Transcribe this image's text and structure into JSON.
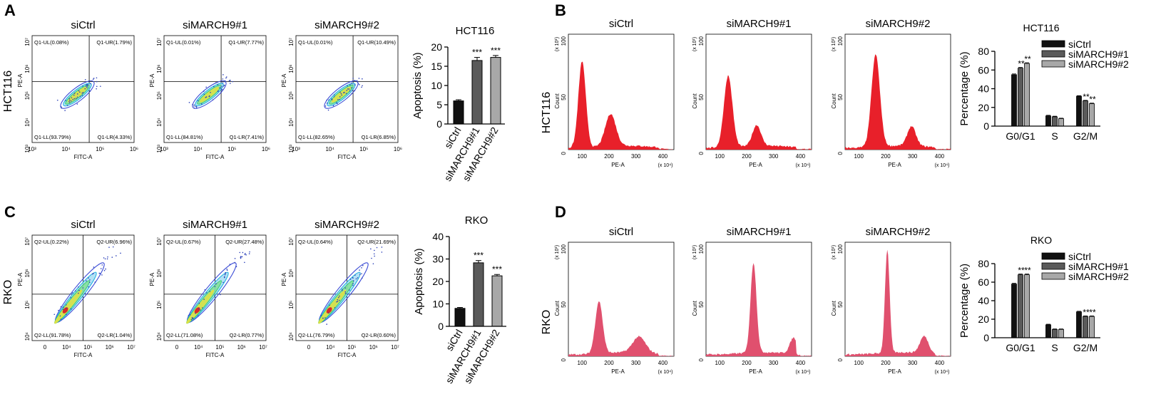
{
  "panel_letters": [
    "A",
    "B",
    "C",
    "D"
  ],
  "row_labels": {
    "hct": "HCT116",
    "rko": "RKO"
  },
  "group_names": [
    "siCtrl",
    "siMARCH9#1",
    "siMARCH9#2"
  ],
  "flow_axes": {
    "x": "FITC-A",
    "y": "PE-A",
    "x_ticks_hct": [
      "10³",
      "10⁴",
      "10⁵",
      "10⁶"
    ],
    "x_ticks_rko": [
      "0",
      "10⁴",
      "10⁵",
      "10⁶",
      "10⁷"
    ],
    "y_ticks_hct": [
      "10³",
      "10⁴",
      "10⁵",
      "10⁶",
      "10⁷"
    ],
    "y_ticks_rko": [
      "10⁴",
      "10⁵",
      "10⁶",
      "10⁷"
    ]
  },
  "flow_panels": [
    {
      "row": "HCT116",
      "group": "siCtrl",
      "q": [
        "Q1-UL(0.08%)",
        "Q1-UR(1.79%)",
        "Q1-LL(93.79%)",
        "Q1-LR(4.33%)"
      ]
    },
    {
      "row": "HCT116",
      "group": "siMARCH9#1",
      "q": [
        "Q1-UL(0.01%)",
        "Q1-UR(7.77%)",
        "Q1-LL(84.81%)",
        "Q1-LR(7.41%)"
      ]
    },
    {
      "row": "HCT116",
      "group": "siMARCH9#2",
      "q": [
        "Q1-UL(0.01%)",
        "Q1-UR(10.49%)",
        "Q1-LL(82.65%)",
        "Q1-LR(6.85%)"
      ]
    },
    {
      "row": "RKO",
      "group": "siCtrl",
      "q": [
        "Q2-UL(0.22%)",
        "Q2-UR(6.96%)",
        "Q2-LL(91.78%)",
        "Q2-LR(1.04%)"
      ]
    },
    {
      "row": "RKO",
      "group": "siMARCH9#1",
      "q": [
        "Q2-UL(0.67%)",
        "Q2-UR(27.48%)",
        "Q2-LL(71.08%)",
        "Q2-LR(0.77%)"
      ]
    },
    {
      "row": "RKO",
      "group": "siMARCH9#2",
      "q": [
        "Q2-UL(0.64%)",
        "Q2-UR(21.69%)",
        "Q2-LL(76.79%)",
        "Q2-LR(0.60%)"
      ]
    }
  ],
  "cc_axes": {
    "x": "PE-A",
    "y": "Count",
    "x_ticks": [
      "100",
      "200",
      "300",
      "400"
    ],
    "y_ticks": [
      "0",
      "50",
      "100"
    ],
    "x_scale": "(x 10⁴)",
    "y_scale": "(x 10¹)"
  },
  "colors": {
    "hct_hist": "#e8202a",
    "rko_hist": "#e0506e",
    "bar_black": "#111111",
    "bar_dark": "#5a5a5a",
    "bar_light": "#a8a8a8"
  },
  "chart_data": [
    {
      "type": "bar",
      "title": "HCT116",
      "ylabel": "Apoptosis (%)",
      "categories": [
        "siCtrl",
        "siMARCH9#1",
        "siMARCH9#2"
      ],
      "values": [
        6,
        16.5,
        17.3
      ],
      "errors": [
        0.3,
        0.8,
        0.5
      ],
      "sig": [
        "",
        "***",
        "***"
      ],
      "ylim": [
        0,
        20
      ],
      "yticks": [
        0,
        5,
        10,
        15,
        20
      ]
    },
    {
      "type": "bar",
      "title": "RKO",
      "ylabel": "Apoptosis (%)",
      "categories": [
        "siCtrl",
        "siMARCH9#1",
        "siMARCH9#2"
      ],
      "values": [
        8,
        28.3,
        22.5
      ],
      "errors": [
        0.4,
        1.0,
        0.6
      ],
      "sig": [
        "",
        "***",
        "***"
      ],
      "ylim": [
        0,
        40
      ],
      "yticks": [
        0,
        10,
        20,
        30,
        40
      ]
    },
    {
      "type": "bar",
      "title": "HCT116",
      "ylabel": "Percentage (%)",
      "categories": [
        "G0/G1",
        "S",
        "G2/M"
      ],
      "series": [
        {
          "name": "siCtrl",
          "values": [
            55,
            11,
            32
          ],
          "errors": [
            0.8,
            0.6,
            0.6
          ]
        },
        {
          "name": "siMARCH9#1",
          "values": [
            62,
            10,
            27
          ],
          "errors": [
            0.8,
            0.6,
            0.6
          ]
        },
        {
          "name": "siMARCH9#2",
          "values": [
            67,
            8,
            24
          ],
          "errors": [
            0.8,
            0.5,
            0.6
          ]
        }
      ],
      "sig": [
        [
          "",
          "**",
          "**"
        ],
        [
          "",
          "",
          ""
        ],
        [
          "",
          "**",
          "**"
        ]
      ],
      "ylim": [
        0,
        80
      ],
      "yticks": [
        0,
        20,
        40,
        60,
        80
      ]
    },
    {
      "type": "bar",
      "title": "RKO",
      "ylabel": "Percentage (%)",
      "categories": [
        "G0/G1",
        "S",
        "G2/M"
      ],
      "series": [
        {
          "name": "siCtrl",
          "values": [
            58,
            14,
            28
          ],
          "errors": [
            0.8,
            0.6,
            0.6
          ]
        },
        {
          "name": "siMARCH9#1",
          "values": [
            68,
            9,
            23
          ],
          "errors": [
            0.8,
            0.5,
            0.6
          ]
        },
        {
          "name": "siMARCH9#2",
          "values": [
            68,
            9,
            23
          ],
          "errors": [
            0.8,
            0.5,
            0.6
          ]
        }
      ],
      "sig": [
        [
          "",
          "**",
          "**"
        ],
        [
          "",
          "",
          ""
        ],
        [
          "",
          "**",
          "**"
        ]
      ],
      "ylim": [
        0,
        80
      ],
      "yticks": [
        0,
        20,
        40,
        60,
        80
      ]
    }
  ]
}
